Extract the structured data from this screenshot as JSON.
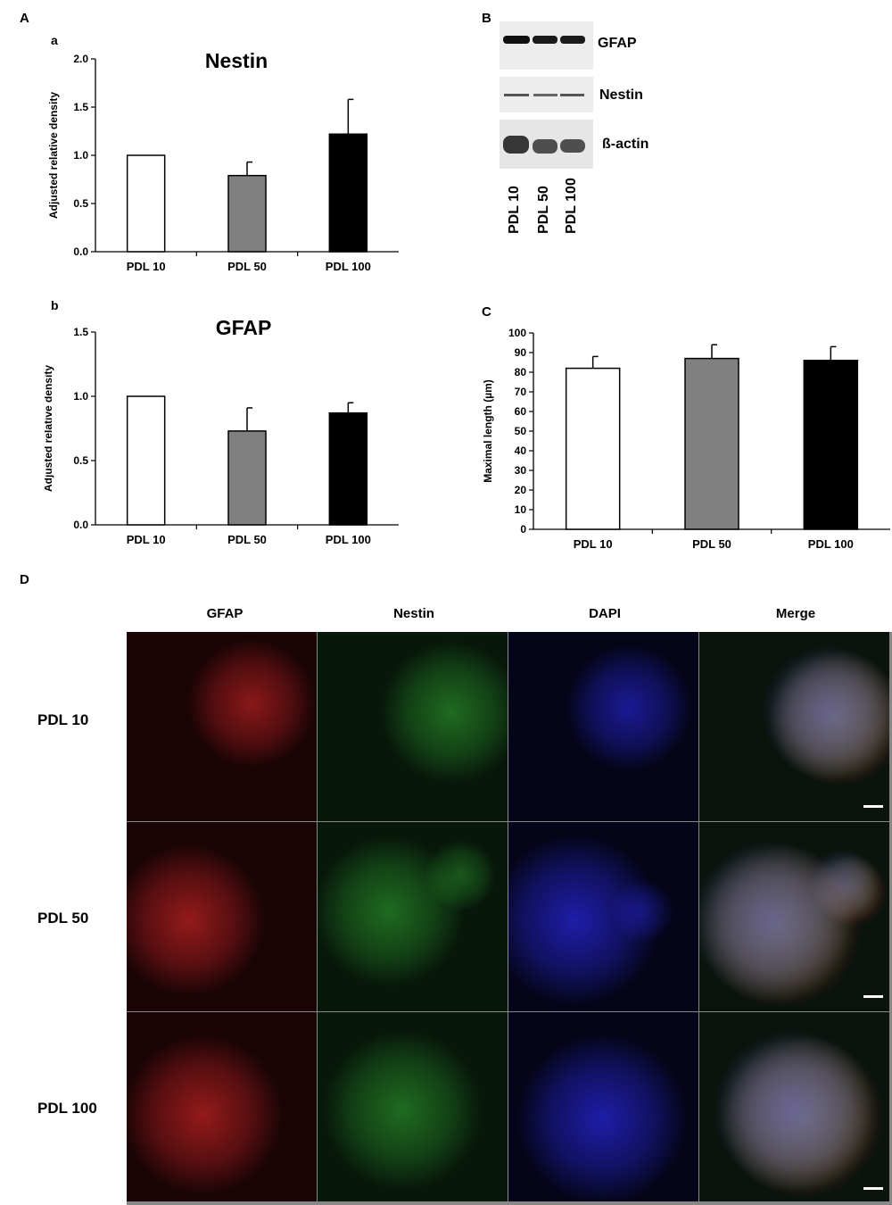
{
  "panels": {
    "A": "A",
    "B": "B",
    "C": "C",
    "D": "D",
    "a": "a",
    "b": "b"
  },
  "chart_data": [
    {
      "id": "A-a",
      "type": "bar",
      "title": "Nestin",
      "categories": [
        "PDL 10",
        "PDL 50",
        "PDL 100"
      ],
      "values": [
        1.0,
        0.79,
        1.22
      ],
      "errors": [
        0,
        0.14,
        0.36
      ],
      "ylabel": "Adjusted relative density",
      "xlabel": "",
      "ylim": [
        0,
        2.0
      ],
      "yticks": [
        "0.0",
        "0.5",
        "1.0",
        "1.5",
        "2.0"
      ],
      "colors": [
        "#ffffff",
        "#808080",
        "#000000"
      ],
      "grid": false
    },
    {
      "id": "A-b",
      "type": "bar",
      "title": "GFAP",
      "categories": [
        "PDL 10",
        "PDL 50",
        "PDL 100"
      ],
      "values": [
        1.0,
        0.73,
        0.87
      ],
      "errors": [
        0,
        0.18,
        0.08
      ],
      "ylabel": "Adjusted relative density",
      "xlabel": "",
      "ylim": [
        0,
        1.5
      ],
      "yticks": [
        "0.0",
        "0.5",
        "1.0",
        "1.5"
      ],
      "colors": [
        "#ffffff",
        "#808080",
        "#000000"
      ],
      "grid": false
    },
    {
      "id": "C",
      "type": "bar",
      "title": "",
      "categories": [
        "PDL 10",
        "PDL 50",
        "PDL 100"
      ],
      "values": [
        82,
        87,
        86
      ],
      "errors": [
        6,
        7,
        7
      ],
      "ylabel": "Maximal length (µm)",
      "xlabel": "",
      "ylim": [
        0,
        100
      ],
      "yticks": [
        "0",
        "10",
        "20",
        "30",
        "40",
        "50",
        "60",
        "70",
        "80",
        "90",
        "100"
      ],
      "colors": [
        "#ffffff",
        "#808080",
        "#000000"
      ],
      "grid": false
    }
  ],
  "western_blot": {
    "bands": [
      "GFAP",
      "Nestin",
      "ß-actin"
    ],
    "lanes": [
      "PDL 10",
      "PDL 50",
      "PDL 100"
    ]
  },
  "micrographs": {
    "columns": [
      "GFAP",
      "Nestin",
      "DAPI",
      "Merge"
    ],
    "rows": [
      "PDL 10",
      "PDL 50",
      "PDL 100"
    ]
  }
}
